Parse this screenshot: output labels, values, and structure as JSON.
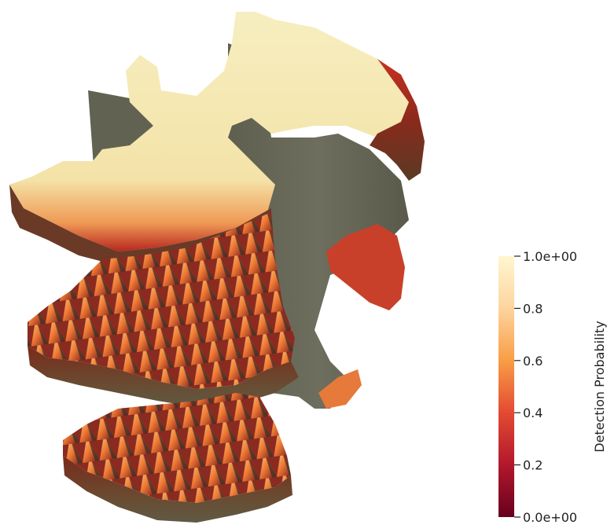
{
  "chart_data": {
    "type": "heatmap",
    "title": "",
    "colorbar": {
      "title": "Detection Probability",
      "range": [
        0.0,
        1.0
      ],
      "ticks": [
        {
          "value": 1.0,
          "label": "1.0e+00"
        },
        {
          "value": 0.8,
          "label": "0.8"
        },
        {
          "value": 0.6,
          "label": "0.6"
        },
        {
          "value": 0.4,
          "label": "0.4"
        },
        {
          "value": 0.2,
          "label": "0.2"
        },
        {
          "value": 0.0,
          "label": "0.0e+00"
        }
      ],
      "colormap": [
        "#67001f",
        "#b2182b",
        "#e34a33",
        "#f99d45",
        "#fdd49e",
        "#fff7cf"
      ]
    }
  }
}
